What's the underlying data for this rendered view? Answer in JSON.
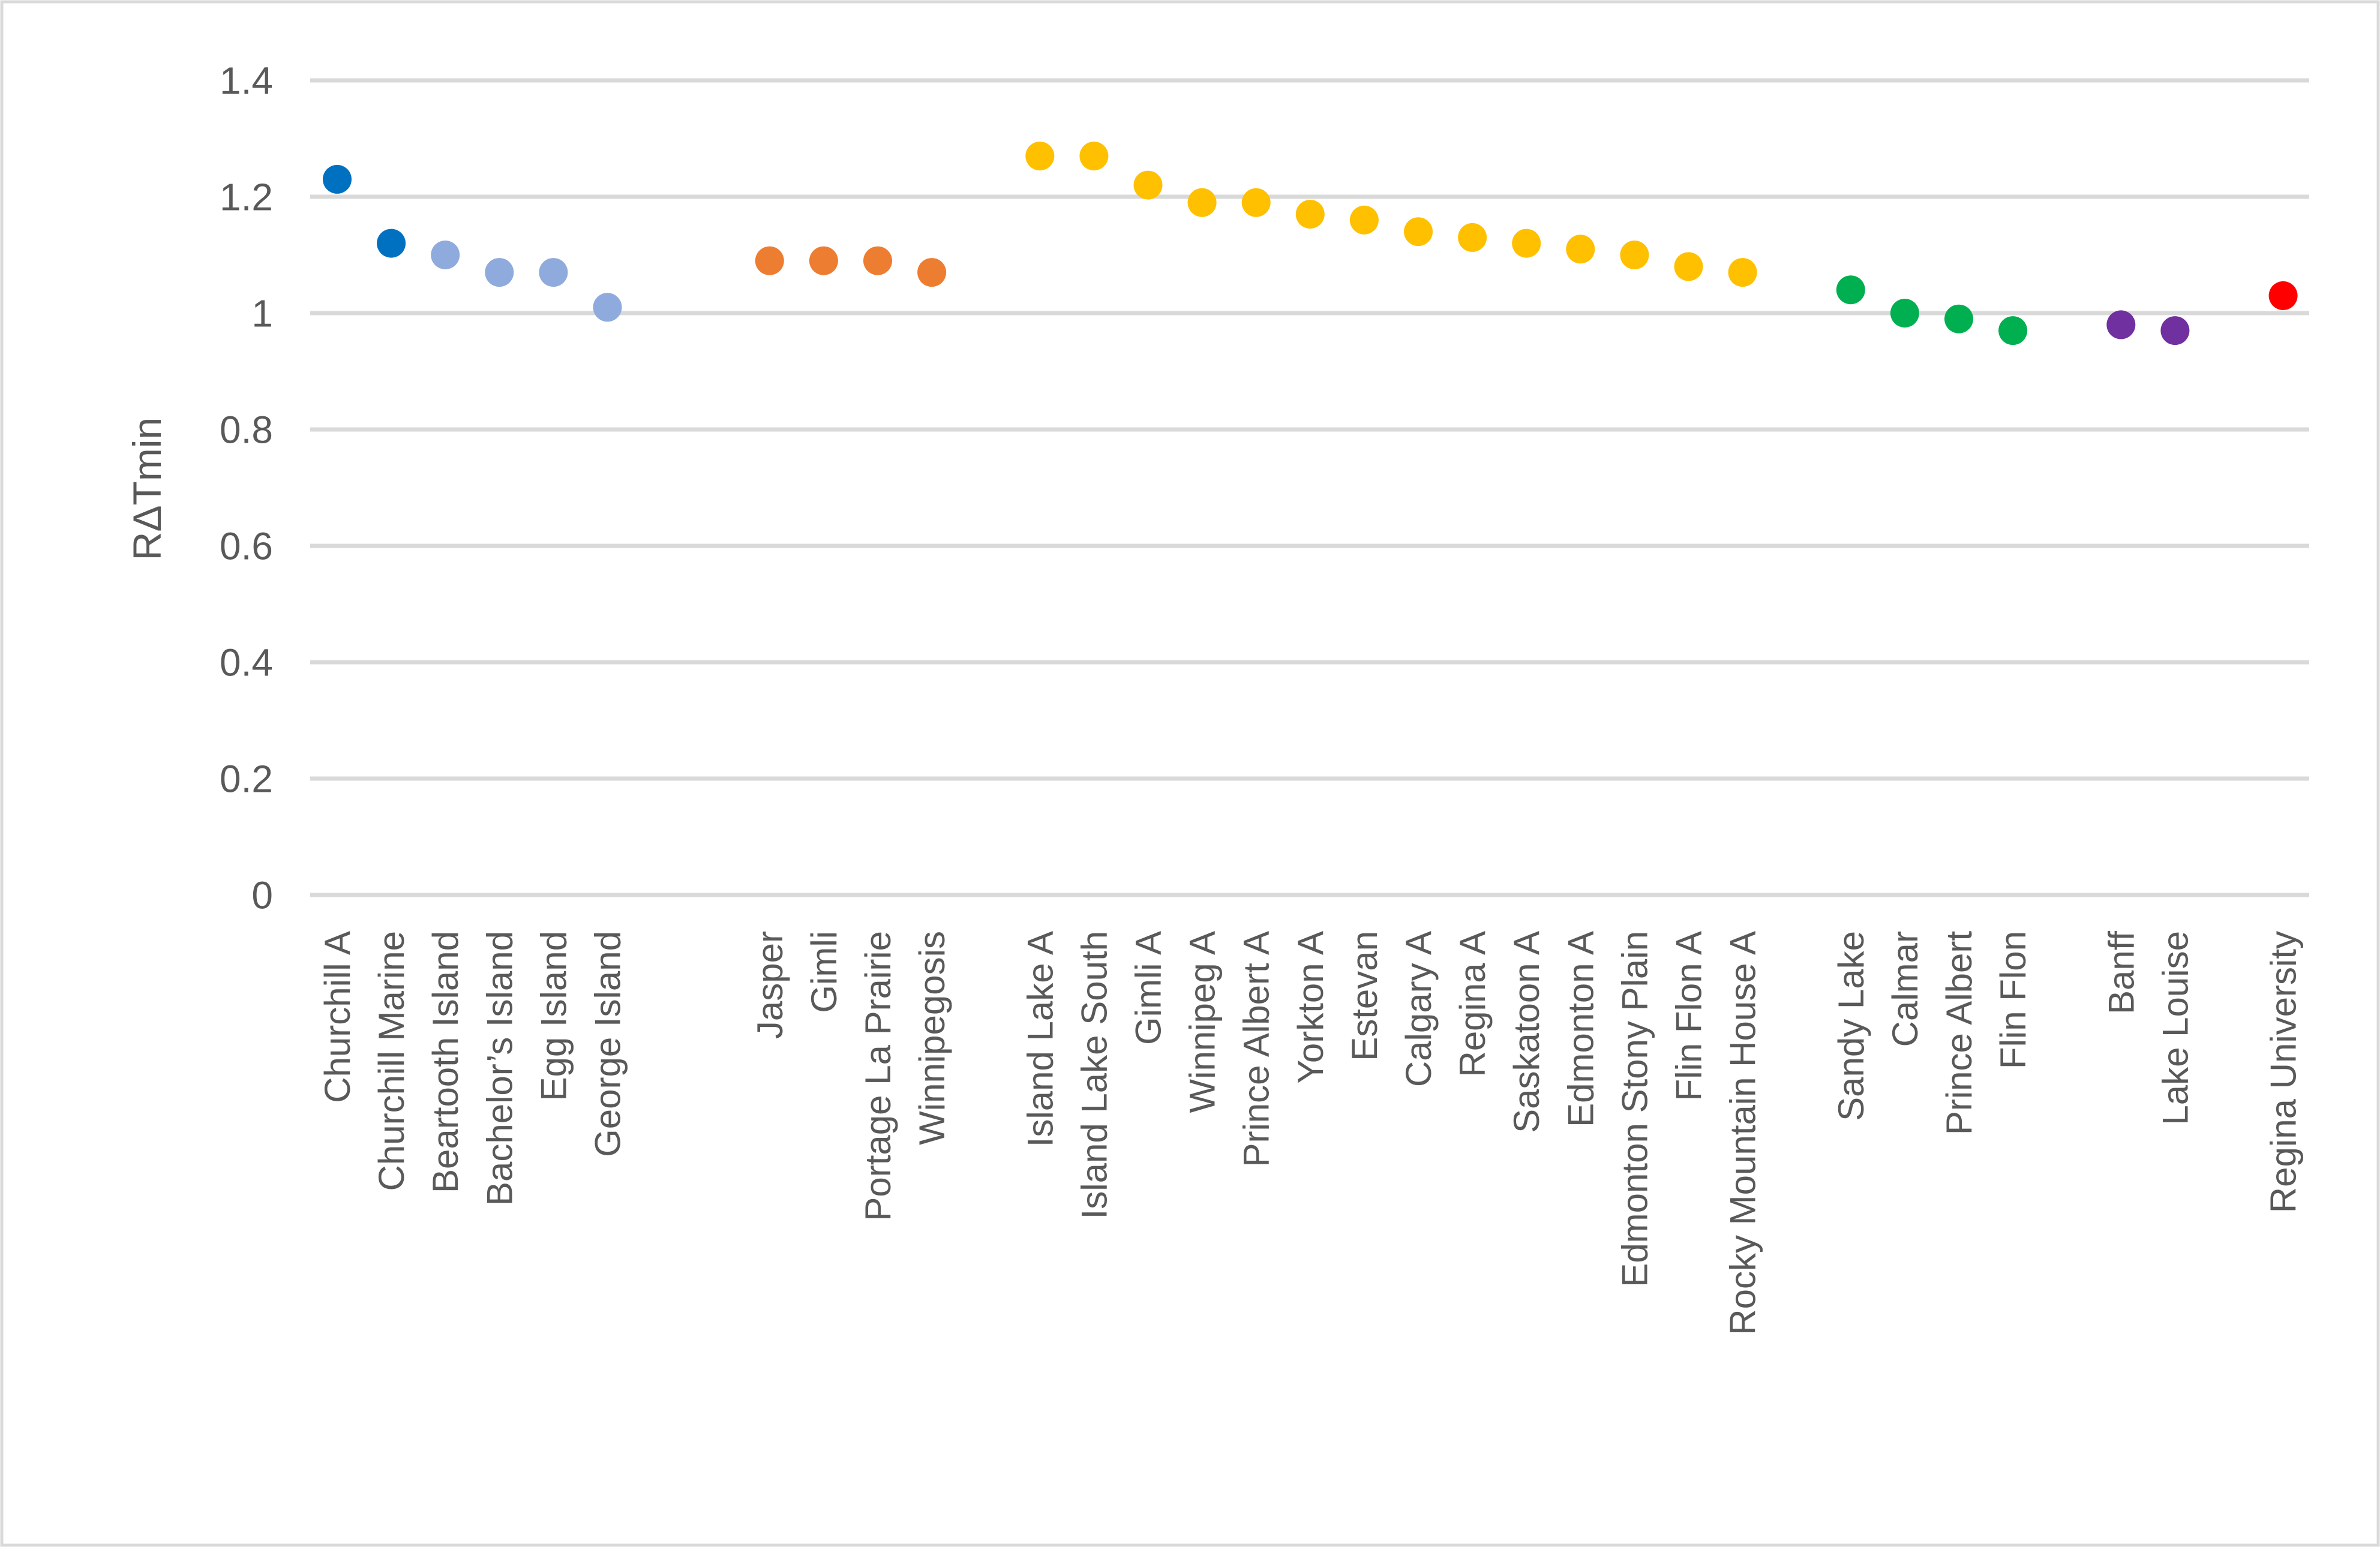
{
  "figure": {
    "background": "#FFFFFF",
    "border_color": "#D9D9D9",
    "gridline_color": "#D9D9D9",
    "text_color": "#595959"
  },
  "chart_data": {
    "type": "scatter",
    "title": "",
    "xlabel": "",
    "ylabel": "RΔTmin",
    "ylim": [
      0,
      1.4
    ],
    "yticks": [
      0,
      0.2,
      0.4,
      0.6,
      0.8,
      1,
      1.2,
      1.4
    ],
    "ytick_labels": [
      "0",
      "0.2",
      "0.4",
      "0.6",
      "0.8",
      "1",
      "1.2",
      "1.4"
    ],
    "grid": true,
    "legend": false,
    "total_slots": 37,
    "series": [
      {
        "name": "churchill-dark-blue",
        "color": "#0070C0",
        "start_slot": 0,
        "points": [
          [
            "Churchill A",
            1.23
          ],
          [
            "Churchill Marine",
            1.12
          ]
        ]
      },
      {
        "name": "hudson-islands-light-blue",
        "color": "#8FAADC",
        "start_slot": 2,
        "points": [
          [
            "Beartooth Island",
            1.1
          ],
          [
            "Bachelor’s Island",
            1.07
          ],
          [
            "Egg Island",
            1.07
          ],
          [
            "George Island",
            1.01
          ]
        ]
      },
      {
        "name": "manitoba-west-orange",
        "color": "#ED7D31",
        "start_slot": 8,
        "points": [
          [
            "Jasper",
            1.09
          ],
          [
            "Gimli",
            1.09
          ],
          [
            "Portage La Prairie",
            1.09
          ],
          [
            "Winnipegosis",
            1.07
          ]
        ]
      },
      {
        "name": "prairie-airports-gold",
        "color": "#FFC000",
        "start_slot": 13,
        "points": [
          [
            "Island Lake A",
            1.27
          ],
          [
            "Island Lake South",
            1.27
          ],
          [
            "Gimli A",
            1.22
          ],
          [
            "Winnipeg A",
            1.19
          ],
          [
            "Prince Albert A",
            1.19
          ],
          [
            "Yorkton A",
            1.17
          ],
          [
            "Estevan",
            1.16
          ],
          [
            "Calgary A",
            1.14
          ],
          [
            "Regina A",
            1.13
          ],
          [
            "Saskatoon A",
            1.12
          ],
          [
            "Edmonton A",
            1.11
          ],
          [
            "Edmonton Stony Plain",
            1.1
          ],
          [
            "Flin Flon A",
            1.08
          ],
          [
            "Rocky Mountain House A",
            1.07
          ]
        ]
      },
      {
        "name": "rural-green",
        "color": "#00B050",
        "start_slot": 28,
        "points": [
          [
            "Sandy Lake",
            1.04
          ],
          [
            "Calmar",
            1.0
          ],
          [
            "Prince Albert",
            0.99
          ],
          [
            "Flin Flon",
            0.97
          ]
        ]
      },
      {
        "name": "mountain-purple",
        "color": "#7030A0",
        "start_slot": 33,
        "points": [
          [
            "Banff",
            0.98
          ],
          [
            "Lake Louise",
            0.97
          ]
        ]
      },
      {
        "name": "urban-red",
        "color": "#FF0000",
        "start_slot": 36,
        "points": [
          [
            "Regina University",
            1.03
          ]
        ]
      }
    ]
  }
}
